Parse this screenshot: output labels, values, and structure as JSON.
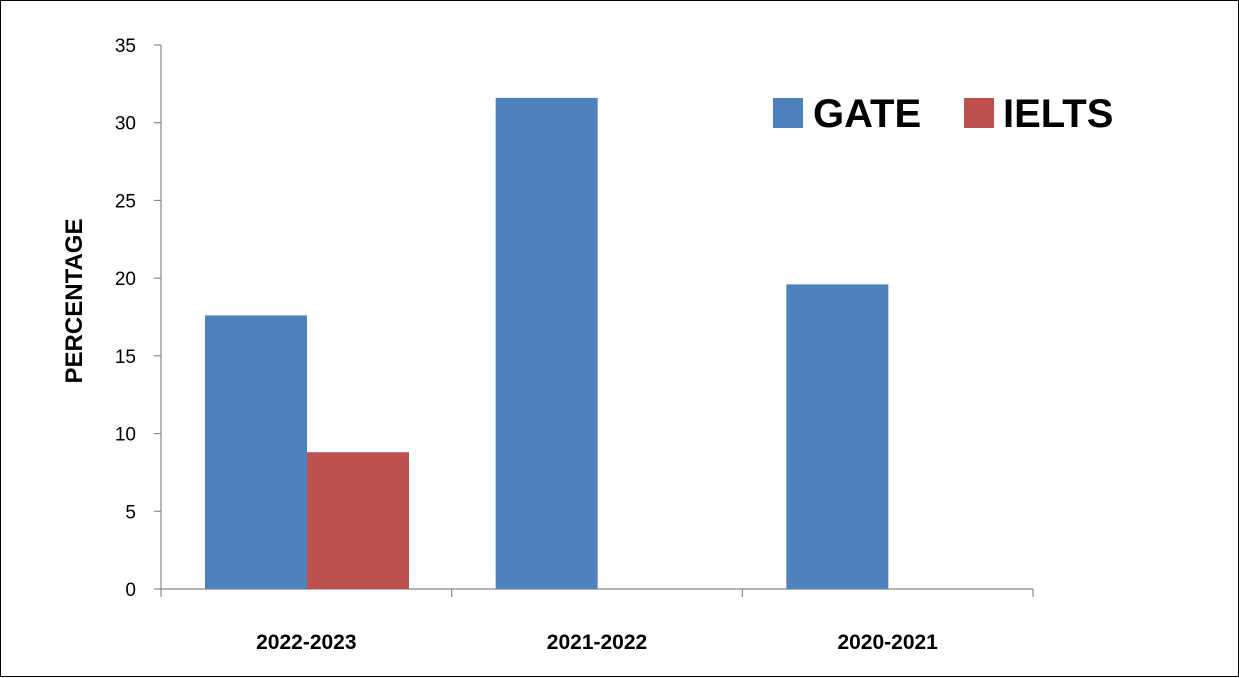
{
  "chart_data": {
    "type": "bar",
    "categories": [
      "2022-2023",
      "2021-2022",
      "2020-2021"
    ],
    "series": [
      {
        "name": "GATE",
        "values": [
          17.6,
          31.6,
          19.6
        ],
        "color": "#4F81BD"
      },
      {
        "name": "IELTS",
        "values": [
          8.8,
          null,
          null
        ],
        "color": "#C0504D"
      }
    ],
    "title": "",
    "xlabel": "",
    "ylabel": "PERCENTAGE",
    "ylim": [
      0,
      35
    ],
    "yticks": [
      0,
      5,
      10,
      15,
      20,
      25,
      30,
      35
    ],
    "ytick_labels": [
      "0",
      "5",
      "10",
      "15",
      "20",
      "25",
      "30",
      "35"
    ],
    "grid": false,
    "legend_position": "top-right"
  }
}
